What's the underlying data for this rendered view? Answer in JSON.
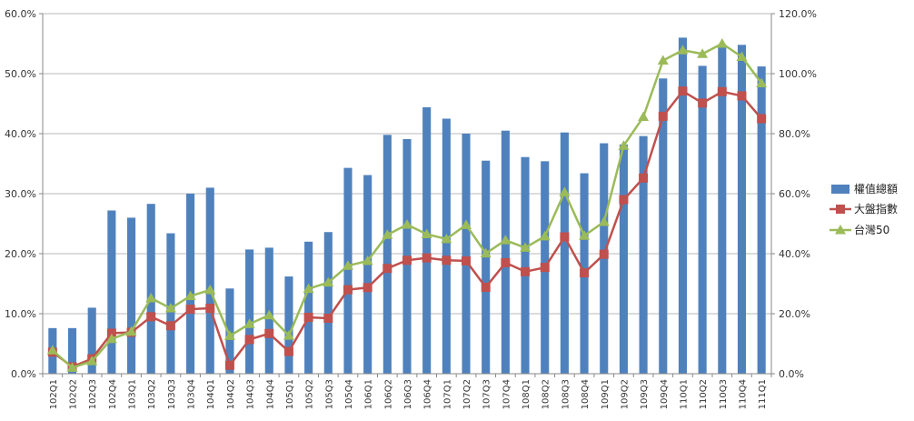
{
  "chart_data": {
    "type": "bar+line",
    "categories": [
      "102Q1",
      "102Q2",
      "102Q3",
      "102Q4",
      "103Q1",
      "103Q2",
      "103Q3",
      "103Q4",
      "104Q1",
      "104Q2",
      "104Q3",
      "104Q4",
      "105Q1",
      "105Q2",
      "105Q3",
      "105Q4",
      "106Q1",
      "106Q2",
      "106Q3",
      "106Q4",
      "107Q1",
      "107Q2",
      "107Q3",
      "107Q4",
      "108Q1",
      "108Q2",
      "108Q3",
      "108Q4",
      "109Q1",
      "109Q2",
      "109Q3",
      "109Q4",
      "110Q1",
      "110Q2",
      "110Q3",
      "110Q4",
      "111Q1"
    ],
    "left_axis": {
      "min": 0,
      "max": 60,
      "step": 10,
      "tick_labels": [
        "0.0%",
        "10.0%",
        "20.0%",
        "30.0%",
        "40.0%",
        "50.0%",
        "60.0%"
      ]
    },
    "right_axis": {
      "min": 0,
      "max": 120,
      "step": 20,
      "tick_labels": [
        "0.0%",
        "20.0%",
        "40.0%",
        "60.0%",
        "80.0%",
        "100.0%",
        "120.0%"
      ]
    },
    "grid": true,
    "legend_position": "right",
    "series": [
      {
        "name": "權值總額",
        "kind": "bar",
        "axis": "left",
        "color": "#4F81BD",
        "values": [
          7.6,
          7.6,
          11.0,
          27.2,
          26.0,
          28.3,
          23.4,
          30.0,
          31.0,
          14.2,
          20.7,
          21.0,
          16.2,
          22.0,
          23.6,
          34.3,
          33.1,
          39.8,
          39.1,
          44.4,
          42.5,
          40.0,
          35.5,
          40.5,
          36.1,
          35.4,
          40.2,
          33.4,
          38.4,
          38.2,
          39.6,
          49.2,
          56.0,
          51.3,
          54.8,
          54.8,
          51.2
        ]
      },
      {
        "name": "大盤指數",
        "kind": "line",
        "axis": "right",
        "color": "#C0504D",
        "marker": "square",
        "values": [
          7.2,
          2.3,
          5.0,
          13.5,
          13.8,
          19.0,
          16.0,
          21.5,
          21.8,
          2.8,
          11.4,
          13.4,
          7.4,
          18.8,
          18.5,
          28.0,
          28.7,
          35.1,
          37.8,
          38.6,
          37.8,
          37.6,
          28.8,
          37.0,
          34.0,
          35.4,
          45.6,
          33.6,
          39.8,
          58.0,
          65.2,
          85.8,
          94.2,
          90.2,
          94.0,
          92.6,
          85.0
        ]
      },
      {
        "name": "台灣50",
        "kind": "line",
        "axis": "right",
        "color": "#9BBB59",
        "marker": "triangle",
        "values": [
          7.8,
          2.0,
          4.2,
          11.6,
          14.0,
          25.2,
          21.8,
          25.9,
          27.9,
          12.6,
          16.6,
          19.5,
          12.7,
          28.3,
          30.4,
          36.0,
          37.6,
          46.3,
          49.7,
          46.5,
          44.9,
          49.6,
          40.1,
          44.5,
          42.0,
          45.8,
          60.5,
          46.0,
          50.6,
          76.0,
          85.6,
          104.4,
          107.8,
          106.6,
          110.0,
          105.6,
          96.8
        ]
      }
    ]
  }
}
